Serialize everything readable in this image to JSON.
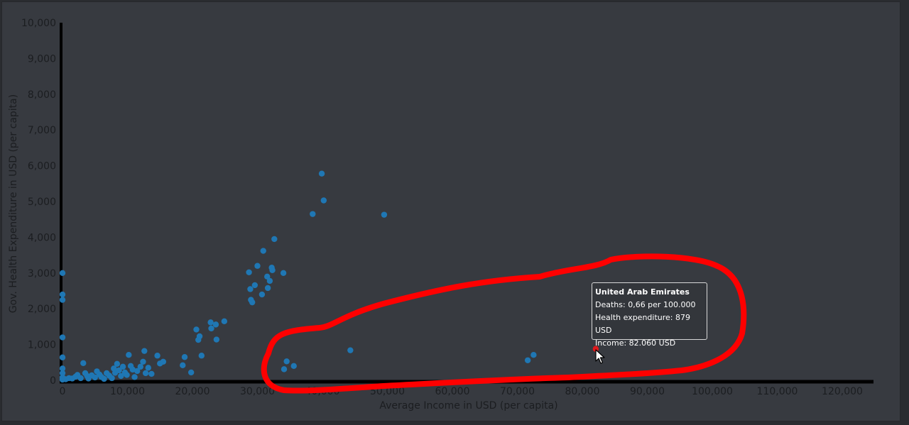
{
  "chart_data": {
    "type": "scatter",
    "xlabel": "Average Income in USD (per capita)",
    "ylabel": "Gov. Health Expenditure in USD (per capita)",
    "xlim": [
      0,
      125000
    ],
    "ylim": [
      0,
      10000
    ],
    "x_ticks": [
      "0",
      "10,000",
      "20,000",
      "30,000",
      "40,000",
      "50,000",
      "60,000",
      "70,000",
      "80,000",
      "90,000",
      "100,000",
      "110,000",
      "120,000"
    ],
    "y_ticks": [
      "0",
      "1,000",
      "2,000",
      "3,000",
      "4,000",
      "5,000",
      "6,000",
      "7,000",
      "8,000",
      "9,000",
      "10,000"
    ],
    "point_color": "#1f77b4",
    "highlight_color": "#e0191c",
    "points": [
      [
        0,
        3000
      ],
      [
        0,
        2400
      ],
      [
        0,
        2250
      ],
      [
        0,
        1200
      ],
      [
        0,
        640
      ],
      [
        0,
        330
      ],
      [
        0,
        200
      ],
      [
        0,
        80
      ],
      [
        0,
        20
      ],
      [
        500,
        30
      ],
      [
        1000,
        60
      ],
      [
        1500,
        50
      ],
      [
        2000,
        100
      ],
      [
        2300,
        150
      ],
      [
        2800,
        60
      ],
      [
        3200,
        480
      ],
      [
        3500,
        200
      ],
      [
        3800,
        120
      ],
      [
        4000,
        50
      ],
      [
        4500,
        140
      ],
      [
        5000,
        80
      ],
      [
        5300,
        250
      ],
      [
        5700,
        160
      ],
      [
        6000,
        90
      ],
      [
        6400,
        40
      ],
      [
        6800,
        200
      ],
      [
        7200,
        130
      ],
      [
        7600,
        60
      ],
      [
        7900,
        330
      ],
      [
        8100,
        210
      ],
      [
        8400,
        460
      ],
      [
        8700,
        280
      ],
      [
        9000,
        120
      ],
      [
        9300,
        380
      ],
      [
        9600,
        220
      ],
      [
        9900,
        150
      ],
      [
        10200,
        710
      ],
      [
        10500,
        400
      ],
      [
        10800,
        300
      ],
      [
        11100,
        90
      ],
      [
        11500,
        260
      ],
      [
        12000,
        380
      ],
      [
        12400,
        520
      ],
      [
        12600,
        820
      ],
      [
        12800,
        200
      ],
      [
        13200,
        350
      ],
      [
        13700,
        180
      ],
      [
        14600,
        690
      ],
      [
        15000,
        470
      ],
      [
        15500,
        520
      ],
      [
        18500,
        420
      ],
      [
        18800,
        650
      ],
      [
        19800,
        220
      ],
      [
        20600,
        1420
      ],
      [
        20900,
        1130
      ],
      [
        21100,
        1230
      ],
      [
        21400,
        690
      ],
      [
        22800,
        1620
      ],
      [
        22900,
        1450
      ],
      [
        23600,
        1560
      ],
      [
        23700,
        1140
      ],
      [
        24900,
        1650
      ],
      [
        28700,
        3020
      ],
      [
        28900,
        2550
      ],
      [
        29000,
        2250
      ],
      [
        29200,
        2180
      ],
      [
        29600,
        2660
      ],
      [
        30000,
        3200
      ],
      [
        30700,
        2400
      ],
      [
        30900,
        3620
      ],
      [
        31500,
        2900
      ],
      [
        31600,
        2580
      ],
      [
        31900,
        2780
      ],
      [
        32200,
        3150
      ],
      [
        32300,
        3080
      ],
      [
        32600,
        3950
      ],
      [
        34000,
        3000
      ],
      [
        38500,
        4650
      ],
      [
        39900,
        5780
      ],
      [
        40200,
        5030
      ],
      [
        34100,
        310
      ],
      [
        34500,
        530
      ],
      [
        35600,
        400
      ],
      [
        44300,
        840
      ],
      [
        49500,
        4630
      ],
      [
        71600,
        560
      ],
      [
        72500,
        710
      ]
    ],
    "highlight": {
      "name": "United Arab Emirates",
      "x": 82060,
      "y": 879
    }
  },
  "tooltip": {
    "title": "United Arab Emirates",
    "deaths": "Deaths: 0,66 per 100.000",
    "health": "Health expenditure: 879 USD",
    "income": "Income: 82.060 USD"
  },
  "annotation_color": "#ff0000"
}
